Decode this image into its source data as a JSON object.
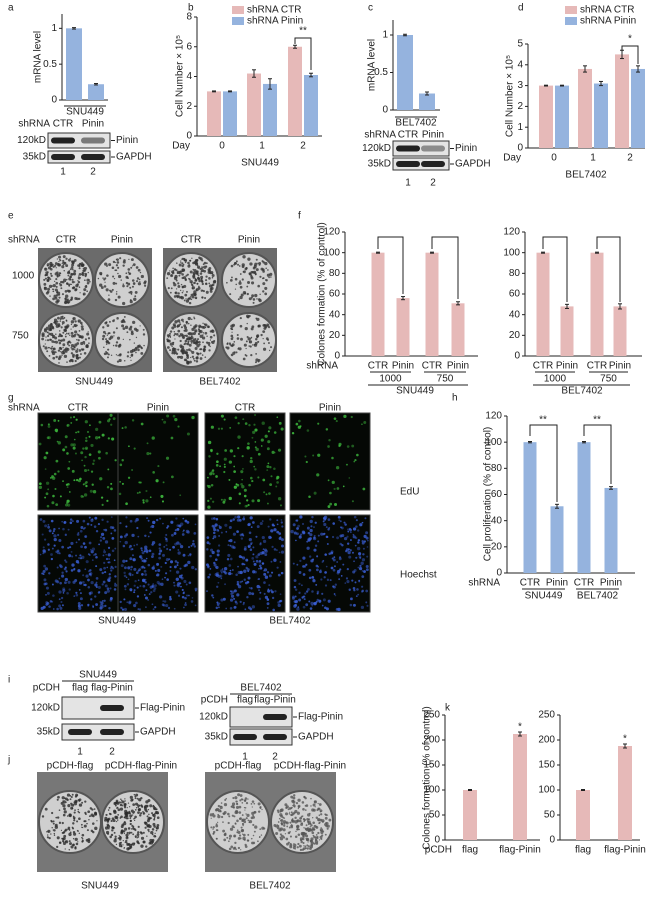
{
  "panel_labels": [
    "a",
    "b",
    "c",
    "d",
    "e",
    "f",
    "g",
    "h",
    "i",
    "j",
    "k"
  ],
  "chart_data": [
    {
      "type": "bar",
      "ylabel": "mRNA level",
      "ylim": [
        0,
        1.2
      ],
      "yticks": [
        0,
        0.5,
        1
      ],
      "categories": [
        null,
        null
      ],
      "series": [
        {
          "color": "#95b3de",
          "values": [
            1,
            0.22
          ],
          "errors": [
            0.01,
            0.01
          ]
        }
      ],
      "xlabel": "SNU449"
    },
    {
      "type": "bar",
      "ylabel": "Cell Number × 10⁵",
      "ylim": [
        0,
        8
      ],
      "yticks": [
        0,
        2,
        4,
        6,
        8
      ],
      "prefix": "Day",
      "categories": [
        "0",
        "1",
        "2"
      ],
      "series": [
        {
          "name": "shRNA CTR",
          "color": "#e6b9b8",
          "values": [
            3,
            4.2,
            6
          ],
          "errors": [
            0.03,
            0.25,
            0.1
          ]
        },
        {
          "name": "shRNA Pinin",
          "color": "#95b3de",
          "values": [
            3,
            3.5,
            4.1
          ],
          "errors": [
            0.03,
            0.35,
            0.12
          ]
        }
      ],
      "xlabel": "SNU449",
      "annotations": [
        "**"
      ]
    },
    {
      "type": "bar",
      "ylabel": "mRNA level",
      "ylim": [
        0,
        1.2
      ],
      "yticks": [
        0,
        0.5,
        1
      ],
      "categories": [
        null,
        null
      ],
      "series": [
        {
          "color": "#95b3de",
          "values": [
            1,
            0.22
          ],
          "errors": [
            0.01,
            0.02
          ]
        }
      ],
      "xlabel": "BEL7402"
    },
    {
      "type": "bar",
      "ylabel": "Cell Number × 10⁵",
      "ylim": [
        0,
        5
      ],
      "yticks": [
        0,
        1,
        2,
        3,
        4,
        5
      ],
      "prefix": "Day",
      "categories": [
        "0",
        "1",
        "2"
      ],
      "series": [
        {
          "name": "shRNA CTR",
          "color": "#e6b9b8",
          "values": [
            3,
            3.8,
            4.5
          ],
          "errors": [
            0.02,
            0.15,
            0.2
          ]
        },
        {
          "name": "shRNA Pinin",
          "color": "#95b3de",
          "values": [
            3,
            3.1,
            3.8
          ],
          "errors": [
            0.02,
            0.1,
            0.15
          ]
        }
      ],
      "xlabel": "BEL7402",
      "annotations": [
        "*"
      ]
    },
    {
      "type": "bar",
      "ylabel": "Colones formation (% of control)",
      "ylim": [
        0,
        120
      ],
      "yticks": [
        0,
        20,
        40,
        60,
        80,
        100,
        120
      ],
      "prefix": "shRNA",
      "categories": [
        "CTR",
        "Pinin",
        "CTR",
        "Pinin"
      ],
      "series": [
        {
          "color": "#e6b9b8",
          "values": [
            100,
            56,
            100,
            51
          ],
          "errors": [
            0.5,
            1.5,
            0.5,
            1.5
          ]
        }
      ],
      "groups": [
        "1000",
        "750"
      ],
      "xlabel": "SNU449"
    },
    {
      "type": "bar",
      "ylim": [
        0,
        120
      ],
      "yticks": [
        0,
        20,
        40,
        60,
        80,
        100,
        120
      ],
      "categories": [
        "CTR",
        "Pinin",
        "CTR",
        "Pinin"
      ],
      "series": [
        {
          "color": "#e6b9b8",
          "values": [
            100,
            48,
            100,
            48
          ],
          "errors": [
            0.5,
            2,
            0.5,
            2.5
          ]
        }
      ],
      "groups": [
        "1000",
        "750"
      ],
      "xlabel": "BEL7402"
    },
    {
      "type": "bar",
      "ylabel": "Cell proliferation (% of control)",
      "ylim": [
        0,
        120
      ],
      "yticks": [
        0,
        20,
        40,
        60,
        80,
        100,
        120
      ],
      "prefix": "shRNA",
      "categories": [
        "CTR",
        "Pinin",
        "CTR",
        "Pinin"
      ],
      "series": [
        {
          "color": "#95b3de",
          "values": [
            100,
            51,
            100,
            65
          ],
          "errors": [
            0.5,
            1.5,
            0.5,
            1
          ]
        }
      ],
      "groups": [
        "SNU449",
        "BEL7402"
      ],
      "annotations": [
        "**",
        "**"
      ]
    },
    {
      "type": "bar",
      "ylabel": "Colones formation (% of control)",
      "ylim": [
        0,
        250
      ],
      "yticks": [
        0,
        50,
        100,
        150,
        200,
        250
      ],
      "prefix": "pCDH",
      "categories": [
        "flag",
        "flag-Pinin"
      ],
      "series": [
        {
          "color": "#e6b9b8",
          "values": [
            100,
            212
          ],
          "errors": [
            1,
            4
          ]
        }
      ],
      "annotations": [
        "*"
      ]
    },
    {
      "type": "bar",
      "ylim": [
        0,
        250
      ],
      "yticks": [
        0,
        50,
        100,
        150,
        200,
        250
      ],
      "categories": [
        "flag",
        "flag-Pinin"
      ],
      "series": [
        {
          "color": "#e6b9b8",
          "values": [
            100,
            188
          ],
          "errors": [
            1,
            4
          ]
        }
      ],
      "annotations": [
        "*"
      ]
    }
  ],
  "blots": [
    {
      "prefix": "shRNA",
      "lanes": [
        "CTR",
        "Pinin"
      ],
      "markers": [
        "120kD",
        "35kD"
      ],
      "bands": [
        "Pinin",
        "GAPDH"
      ],
      "lane_numbers": [
        "1",
        "2"
      ]
    },
    {
      "prefix": "shRNA",
      "lanes": [
        "CTR",
        "Pinin"
      ],
      "markers": [
        "120kD",
        "35kD"
      ],
      "bands": [
        "Pinin",
        "GAPDH"
      ],
      "lane_numbers": [
        "1",
        "2"
      ]
    },
    {
      "cell_line": "SNU449",
      "prefix": "pCDH",
      "lanes": [
        "flag",
        "flag-Pinin"
      ],
      "markers": [
        "120kD",
        "35kD"
      ],
      "bands": [
        "Flag-Pinin",
        "GAPDH"
      ],
      "lane_numbers": [
        "1",
        "2"
      ]
    },
    {
      "cell_line": "BEL7402",
      "prefix": "pCDH",
      "lanes": [
        "flag",
        "flag-Pinin"
      ],
      "markers": [
        "120kD",
        "35kD"
      ],
      "bands": [
        "Flag-Pinin",
        "GAPDH"
      ],
      "lane_numbers": [
        "1",
        "2"
      ]
    }
  ],
  "panel_e": {
    "prefix": "shRNA",
    "columns": [
      "CTR",
      "Pinin",
      "CTR",
      "Pinin"
    ],
    "rows": [
      "1000",
      "750"
    ],
    "cell_lines": [
      "SNU449",
      "BEL7402"
    ]
  },
  "panel_g": {
    "prefix": "shRNA",
    "columns": [
      "CTR",
      "Pinin",
      "CTR",
      "Pinin"
    ],
    "rows": [
      "EdU",
      "Hoechst"
    ],
    "cell_lines": [
      "SNU449",
      "BEL7402"
    ]
  },
  "panel_j": {
    "columns": [
      "pCDH-flag",
      "pCDH-flag-Pinin",
      "pCDH-flag",
      "pCDH-flag-Pinin"
    ],
    "cell_lines": [
      "SNU449",
      "BEL7402"
    ]
  }
}
